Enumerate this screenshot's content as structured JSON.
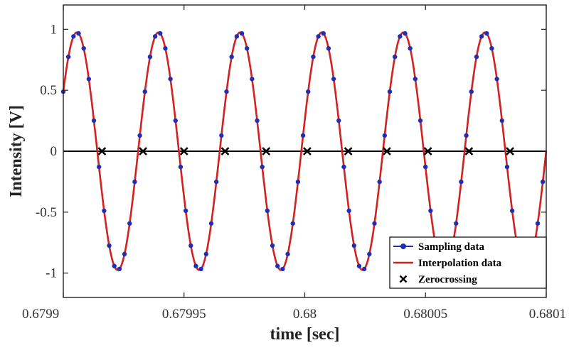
{
  "chart_data": {
    "type": "line",
    "title": "",
    "xlabel": "time [sec]",
    "ylabel": "Intensity [V]",
    "xlim": [
      0.6799,
      0.6801
    ],
    "ylim": [
      -1.2,
      1.2
    ],
    "x_ticks": [
      0.6799,
      0.67995,
      0.68,
      0.68005,
      0.6801
    ],
    "x_tick_labels": [
      "0.6799",
      "0.67995",
      "0.68",
      "0.68005",
      "0.6801"
    ],
    "y_ticks": [
      1,
      0.5,
      0,
      -0.5,
      -1
    ],
    "y_tick_labels": [
      "1",
      "0.5",
      "0",
      "-0.5",
      "-1"
    ],
    "grid": false,
    "legend_position": "bottom-right",
    "signal": {
      "amplitude": 0.975,
      "period_sec": 3.38e-05,
      "phase_at_start_rad": 0.525,
      "samples_per_period": 16
    },
    "series": [
      {
        "name": "Sampling data",
        "style": "markers",
        "color": "#1f2fb5"
      },
      {
        "name": "Interpolation data",
        "style": "line",
        "color": "#d42020"
      },
      {
        "name": "Zerocrossing",
        "style": "x-markers",
        "color": "#000000",
        "x": [
          0.679916,
          0.679933,
          0.67995,
          0.679967,
          0.679984,
          0.680001,
          0.680018,
          0.680034,
          0.680051,
          0.680068,
          0.680085
        ],
        "y": [
          0,
          0,
          0,
          0,
          0,
          0,
          0,
          0,
          0,
          0,
          0
        ]
      }
    ],
    "legend": [
      "Sampling data",
      "Interpolation data",
      "Zerocrossing"
    ]
  }
}
